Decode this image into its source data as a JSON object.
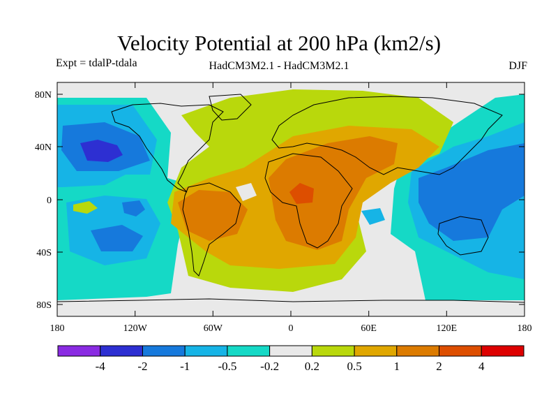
{
  "title": "Velocity Potential at 200 hPa (km2/s)",
  "experiment_label": "Expt = tdalP-tdala",
  "model_label": "HadCM3M2.1 - HadCM3M2.1",
  "season_label": "DJF",
  "map": {
    "lat_ticks": [
      "80N",
      "40N",
      "0",
      "40S",
      "80S"
    ],
    "lon_ticks": [
      "180",
      "120W",
      "60W",
      "0",
      "60E",
      "120E",
      "180"
    ]
  },
  "legend": {
    "colors": [
      "#8a2be2",
      "#2d2fd2",
      "#1679dc",
      "#16b4e6",
      "#15d9c6",
      "#e9e9e9",
      "#b9d80c",
      "#e0a700",
      "#dc7b00",
      "#dd4e00",
      "#dd0000"
    ],
    "labels": [
      "-4",
      "-2",
      "-1",
      "-0.5",
      "-0.2",
      "0.2",
      "0.5",
      "1",
      "2",
      "4"
    ]
  }
}
